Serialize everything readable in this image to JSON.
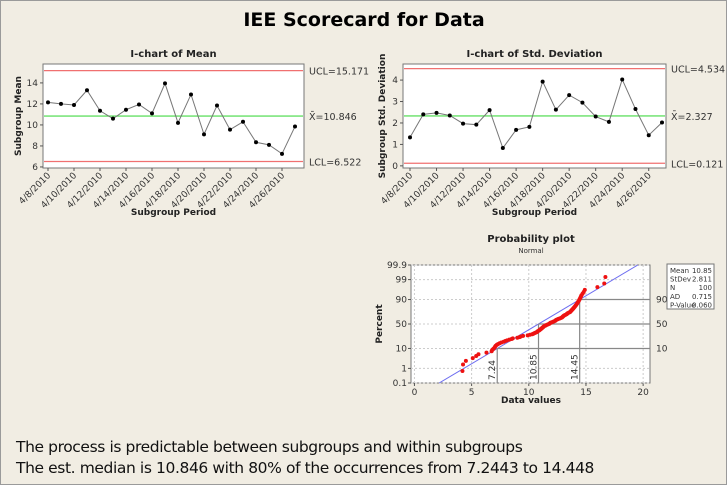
{
  "title": "IEE Scorecard for Data",
  "summary": [
    "The process is predictable between subgroups and within subgroups",
    "The est. median is 10.846 with 80% of the occurrences from 7.2443 to 14.448"
  ],
  "chart_data": [
    {
      "type": "line",
      "title": "I-chart of Mean",
      "xlabel": "Subgroup Period",
      "ylabel": "Subgroup Mean",
      "x": [
        "4/8/2010",
        "4/9/2010",
        "4/10/2010",
        "4/11/2010",
        "4/12/2010",
        "4/13/2010",
        "4/14/2010",
        "4/15/2010",
        "4/16/2010",
        "4/17/2010",
        "4/18/2010",
        "4/19/2010",
        "4/20/2010",
        "4/21/2010",
        "4/22/2010",
        "4/23/2010",
        "4/24/2010",
        "4/25/2010",
        "4/26/2010",
        "4/27/2010"
      ],
      "x_tick_labels": [
        "4/8/2010",
        "4/10/2010",
        "4/12/2010",
        "4/14/2010",
        "4/16/2010",
        "4/18/2010",
        "4/20/2010",
        "4/22/2010",
        "4/24/2010",
        "4/26/2010"
      ],
      "values": [
        12.15,
        12.0,
        11.9,
        13.3,
        11.35,
        10.6,
        11.45,
        11.95,
        11.1,
        13.95,
        10.2,
        12.9,
        9.1,
        11.85,
        9.55,
        10.3,
        8.35,
        8.1,
        7.25,
        9.85
      ],
      "yticks": [
        6,
        8,
        10,
        12,
        14
      ],
      "ylim": [
        5.9,
        15.8
      ],
      "ucl": 15.171,
      "center": 10.846,
      "lcl": 6.522,
      "ucl_label": "UCL=15.171",
      "center_label": "X̄=10.846",
      "lcl_label": "LCL=6.522",
      "colors": {
        "limits": "#f07070",
        "center": "#66e066",
        "series": "#777777",
        "points": "#000000"
      }
    },
    {
      "type": "line",
      "title": "I-chart of Std. Deviation",
      "xlabel": "Subgroup Period",
      "ylabel": "Subgroup Std. Deviation",
      "x": [
        "4/8/2010",
        "4/9/2010",
        "4/10/2010",
        "4/11/2010",
        "4/12/2010",
        "4/13/2010",
        "4/14/2010",
        "4/15/2010",
        "4/16/2010",
        "4/17/2010",
        "4/18/2010",
        "4/19/2010",
        "4/20/2010",
        "4/21/2010",
        "4/22/2010",
        "4/23/2010",
        "4/24/2010",
        "4/25/2010",
        "4/26/2010",
        "4/27/2010"
      ],
      "x_tick_labels": [
        "4/8/2010",
        "4/10/2010",
        "4/12/2010",
        "4/14/2010",
        "4/16/2010",
        "4/18/2010",
        "4/20/2010",
        "4/22/2010",
        "4/24/2010",
        "4/26/2010"
      ],
      "values": [
        1.33,
        2.4,
        2.47,
        2.35,
        1.97,
        1.92,
        2.6,
        0.83,
        1.68,
        1.82,
        3.93,
        2.62,
        3.3,
        2.95,
        2.3,
        2.05,
        4.03,
        2.65,
        1.43,
        2.02
      ],
      "yticks": [
        0,
        1,
        2,
        3,
        4
      ],
      "ylim": [
        -0.1,
        4.75
      ],
      "ucl": 4.534,
      "center": 2.327,
      "lcl": 0.121,
      "ucl_label": "UCL=4.534",
      "center_label": "X̄=2.327",
      "lcl_label": "LCL=0.121",
      "colors": {
        "limits": "#f07070",
        "center": "#66e066",
        "series": "#777777",
        "points": "#000000"
      }
    },
    {
      "type": "scatter",
      "title": "Probability plot",
      "subtitle": "Normal",
      "xlabel": "Data values",
      "ylabel": "Percent",
      "xticks": [
        0,
        5,
        10,
        15,
        20
      ],
      "xlim": [
        -0.3,
        20.6
      ],
      "yticks": [
        "0.1",
        "1",
        "10",
        "50",
        "90",
        "99",
        "99.9"
      ],
      "y_scale": "normal-probability",
      "grid": true,
      "values": [
        4.2,
        4.25,
        4.5,
        5.1,
        5.4,
        5.6,
        6.3,
        6.75,
        6.8,
        6.9,
        7.0,
        7.05,
        7.1,
        7.2,
        7.3,
        7.45,
        7.6,
        7.8,
        7.95,
        8.1,
        8.3,
        8.5,
        8.6,
        9.0,
        9.2,
        9.3,
        9.5,
        9.9,
        10.1,
        10.3,
        10.4,
        10.5,
        10.6,
        10.7,
        10.75,
        10.8,
        10.9,
        10.95,
        11.0,
        11.05,
        11.1,
        11.15,
        11.2,
        11.25,
        11.3,
        11.35,
        11.45,
        11.5,
        11.6,
        11.7,
        11.8,
        11.85,
        11.9,
        12.0,
        12.1,
        12.2,
        12.3,
        12.35,
        12.4,
        12.5,
        12.6,
        12.7,
        12.8,
        12.9,
        12.95,
        13.0,
        13.05,
        13.1,
        13.2,
        13.3,
        13.35,
        13.4,
        13.5,
        13.6,
        13.65,
        13.7,
        13.75,
        13.8,
        13.85,
        13.9,
        13.95,
        14.0,
        14.05,
        14.1,
        14.15,
        14.2,
        14.25,
        14.3,
        14.35,
        14.4,
        14.45,
        14.5,
        14.55,
        14.6,
        14.7,
        14.8,
        14.9,
        16.0,
        16.6,
        16.7
      ],
      "fit": {
        "mean": 10.85,
        "stdev": 2.811
      },
      "reference_lines": [
        {
          "percent": 10,
          "value": 7.24,
          "percent_label": "10",
          "value_label": "7.24"
        },
        {
          "percent": 50,
          "value": 10.85,
          "percent_label": "50",
          "value_label": "10.85"
        },
        {
          "percent": 90,
          "value": 14.45,
          "percent_label": "90",
          "value_label": "14.45"
        }
      ],
      "stats": [
        {
          "label": "Mean",
          "value": "10.85"
        },
        {
          "label": "StDev",
          "value": "2.811"
        },
        {
          "label": "N",
          "value": "100"
        },
        {
          "label": "AD",
          "value": "0.715"
        },
        {
          "label": "P-Value",
          "value": "0.060"
        }
      ],
      "colors": {
        "points": "#ee1111",
        "fit": "#6e6ef0",
        "reference": "#888888"
      }
    }
  ]
}
